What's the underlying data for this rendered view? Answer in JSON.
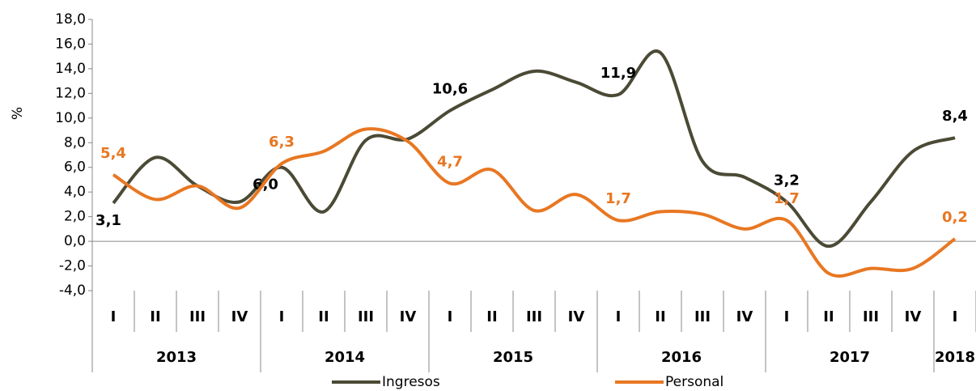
{
  "chart_data": {
    "type": "line",
    "y_label": "%",
    "categories": [
      "I",
      "II",
      "III",
      "IV",
      "I",
      "II",
      "III",
      "IV",
      "I",
      "II",
      "III",
      "IV",
      "I",
      "II",
      "III",
      "IV",
      "I",
      "II",
      "III",
      "IV",
      "I"
    ],
    "years": [
      "2013",
      "2014",
      "2015",
      "2016",
      "2017",
      "2018"
    ],
    "ylim": [
      -4,
      18
    ],
    "yticks": [
      {
        "value": -4,
        "label": "-4,0"
      },
      {
        "value": -2,
        "label": "-2,0"
      },
      {
        "value": 0,
        "label": "0,0"
      },
      {
        "value": 2,
        "label": "2,0"
      },
      {
        "value": 4,
        "label": "4,0"
      },
      {
        "value": 6,
        "label": "6,0"
      },
      {
        "value": 8,
        "label": "8,0"
      },
      {
        "value": 10,
        "label": "10,0"
      },
      {
        "value": 12,
        "label": "12,0"
      },
      {
        "value": 14,
        "label": "14,0"
      },
      {
        "value": 16,
        "label": "16,0"
      },
      {
        "value": 18,
        "label": "18,0"
      }
    ],
    "series": [
      {
        "name": "Ingresos",
        "color": "#4b4a35",
        "values": [
          3.1,
          6.8,
          4.5,
          3.2,
          6.0,
          2.4,
          8.2,
          8.3,
          10.6,
          12.3,
          13.8,
          12.9,
          11.9,
          15.3,
          6.5,
          5.2,
          3.2,
          -0.4,
          3.2,
          7.3,
          8.4
        ],
        "value_labels": [
          "3,1",
          null,
          null,
          null,
          "6,0",
          null,
          null,
          null,
          "10,6",
          null,
          null,
          null,
          "11,9",
          null,
          null,
          null,
          "3,2",
          null,
          null,
          null,
          "8,4"
        ]
      },
      {
        "name": "Personal",
        "color": "#e87722",
        "values": [
          5.4,
          3.4,
          4.5,
          2.7,
          6.3,
          7.3,
          9.1,
          8.1,
          4.7,
          5.8,
          2.5,
          3.8,
          1.7,
          2.4,
          2.2,
          1.0,
          1.7,
          -2.6,
          -2.2,
          -2.2,
          0.2
        ],
        "value_labels": [
          "5,4",
          null,
          null,
          null,
          "6,3",
          null,
          null,
          null,
          "4,7",
          null,
          null,
          null,
          "1,7",
          null,
          null,
          null,
          "1,7",
          null,
          null,
          null,
          "0,2"
        ]
      }
    ]
  }
}
